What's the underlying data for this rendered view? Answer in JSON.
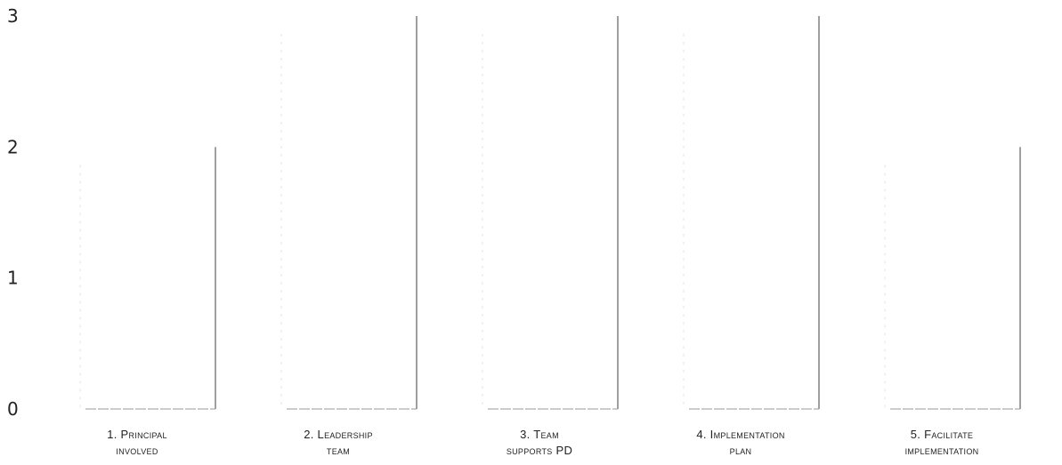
{
  "chart_data": {
    "type": "bar",
    "categories": [
      [
        "1. Principal",
        "involved"
      ],
      [
        "2. Leadership",
        "team"
      ],
      [
        "3. Team",
        "supports PD"
      ],
      [
        "4. Implementation",
        "plan"
      ],
      [
        "5. Facilitate",
        "implementation"
      ]
    ],
    "values": [
      2,
      3,
      3,
      3,
      2
    ],
    "ylim": [
      0,
      3
    ],
    "yticks": [
      0,
      1,
      2,
      3
    ],
    "grid": false,
    "title": "",
    "xlabel": "",
    "ylabel": "",
    "colors": {
      "bar_edge": "#6b6b6b",
      "baseline": "#9a9a9a",
      "text": "#222222"
    }
  }
}
